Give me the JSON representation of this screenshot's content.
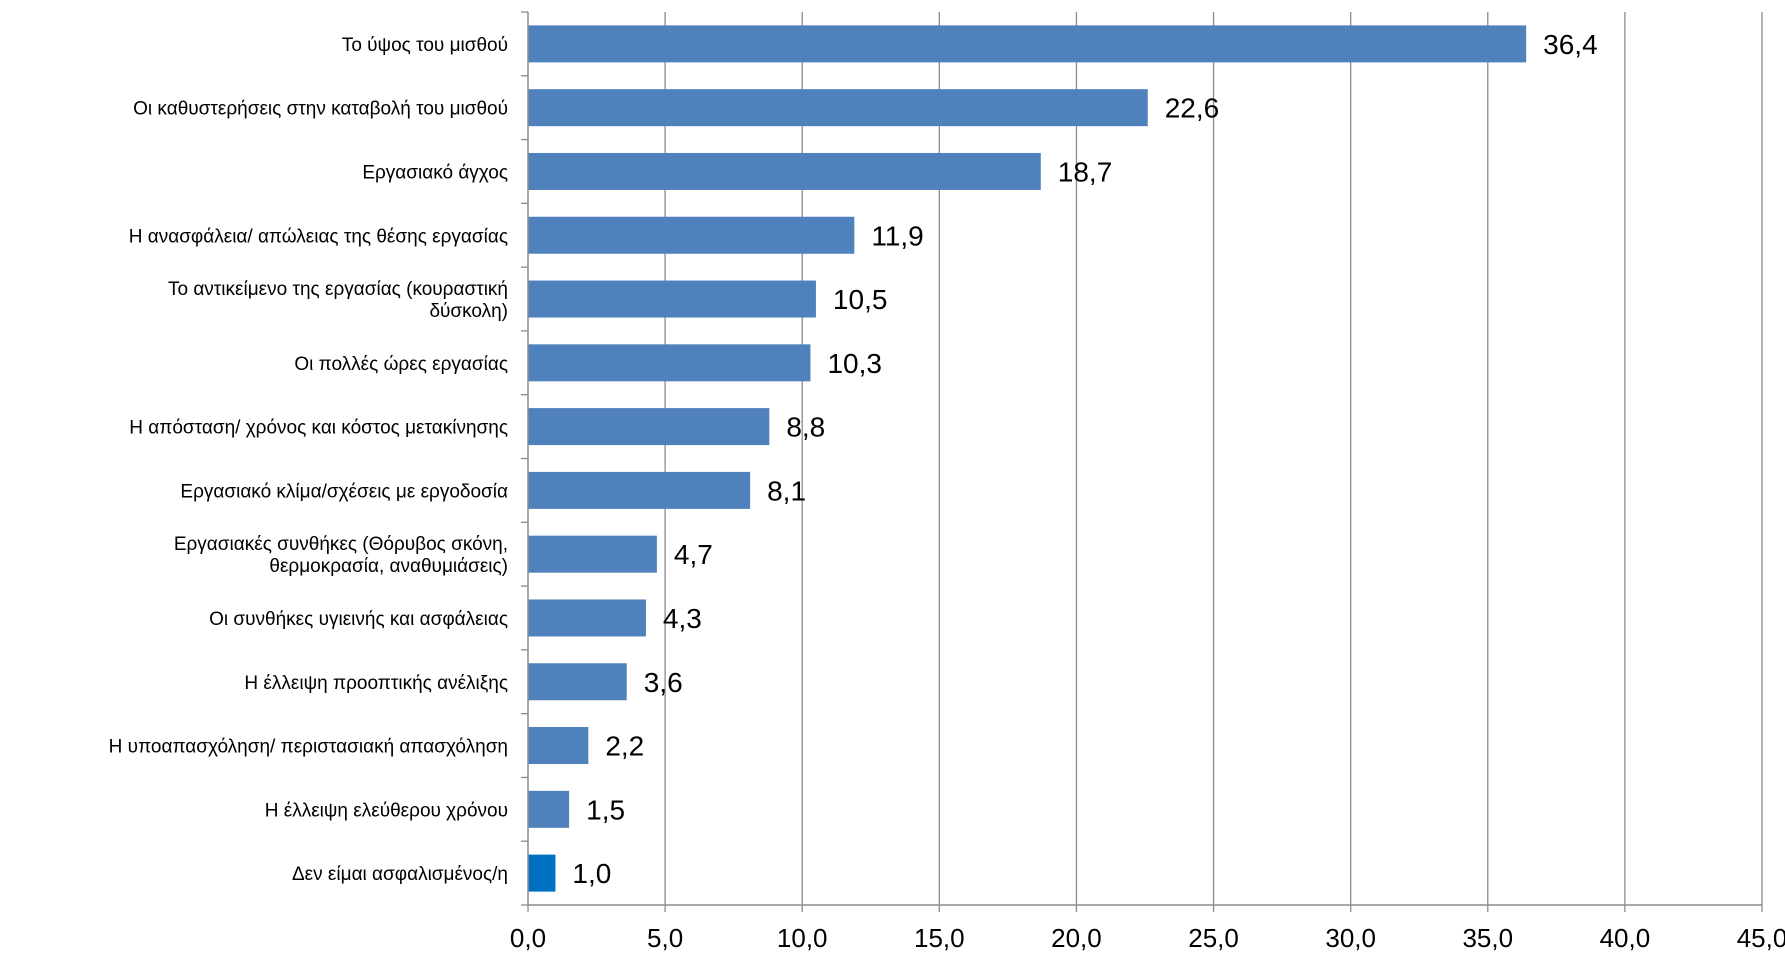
{
  "chart_data": {
    "type": "bar",
    "orientation": "horizontal",
    "categories": [
      "Το ύψος του μισθού",
      "Οι καθυστερήσεις στην καταβολή του μισθού",
      "Εργασιακό άγχος",
      "Η ανασφάλεια/ απώλειας της θέσης εργασίας",
      "Το αντικείμενο της εργασίας (κουραστική δύσκολη)",
      "Οι πολλές ώρες εργασίας",
      "Η απόσταση/  χρόνος και κόστος μετακίνησης",
      "Εργασιακό κλίμα/σχέσεις με εργοδοσία",
      "Εργασιακές συνθήκες (Θόρυβος σκόνη, θερμοκρασία, αναθυμιάσεις)",
      "Οι συνθήκες υγιεινής και ασφάλειας",
      "Η έλλειψη προοπτικής ανέλιξης",
      "Η υποαπασχόληση/ περιστασιακή απασχόληση",
      "Η έλλειψη ελεύθερου χρόνου",
      "Δεν είμαι ασφαλισμένος/η"
    ],
    "category_lines": [
      [
        "Το ύψος του μισθού"
      ],
      [
        "Οι καθυστερήσεις στην καταβολή του μισθού"
      ],
      [
        "Εργασιακό άγχος"
      ],
      [
        "Η ανασφάλεια/ απώλειας της θέσης εργασίας"
      ],
      [
        "Το αντικείμενο της εργασίας (κουραστική",
        "δύσκολη)"
      ],
      [
        "Οι πολλές ώρες εργασίας"
      ],
      [
        "Η απόσταση/  χρόνος και κόστος μετακίνησης"
      ],
      [
        "Εργασιακό κλίμα/σχέσεις με εργοδοσία"
      ],
      [
        "Εργασιακές συνθήκες (Θόρυβος σκόνη,",
        "θερμοκρασία, αναθυμιάσεις)"
      ],
      [
        "Οι συνθήκες υγιεινής και ασφάλειας"
      ],
      [
        "Η έλλειψη προοπτικής ανέλιξης"
      ],
      [
        "Η υποαπασχόληση/ περιστασιακή απασχόληση"
      ],
      [
        "Η έλλειψη ελεύθερου χρόνου"
      ],
      [
        "Δεν είμαι ασφαλισμένος/η"
      ]
    ],
    "values": [
      36.4,
      22.6,
      18.7,
      11.9,
      10.5,
      10.3,
      8.8,
      8.1,
      4.7,
      4.3,
      3.6,
      2.2,
      1.5,
      1.0
    ],
    "data_labels": [
      "36,4",
      "22,6",
      "18,7",
      "11,9",
      "10,5",
      "10,3",
      "8,8",
      "8,1",
      "4,7",
      "4,3",
      "3,6",
      "2,2",
      "1,5",
      "1,0"
    ],
    "xlim": [
      0,
      45
    ],
    "x_ticks": [
      0,
      5,
      10,
      15,
      20,
      25,
      30,
      35,
      40,
      45
    ],
    "x_tick_labels": [
      "0,0",
      "5,0",
      "10,0",
      "15,0",
      "20,0",
      "25,0",
      "30,0",
      "35,0",
      "40,0",
      "45,0"
    ],
    "grid": "vertical",
    "legend": "none",
    "colors": {
      "bar": "#4F81BD",
      "highlight_bar": "#0070C0",
      "highlight_index": 13,
      "grid": "#8C8C8C",
      "axis": "#8C8C8C"
    }
  }
}
